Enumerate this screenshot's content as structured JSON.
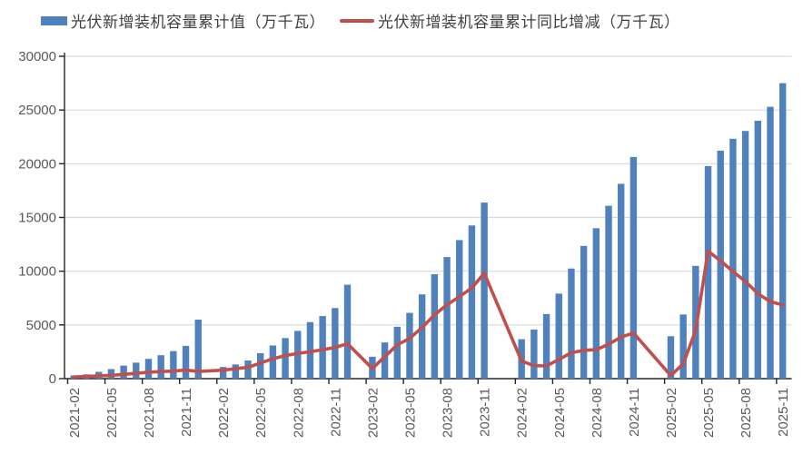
{
  "chart_data": {
    "type": "combo_bar_line",
    "title": "",
    "legend_position": "top",
    "grid": true,
    "categories": [
      "2021-02",
      "2021-03",
      "2021-04",
      "2021-05",
      "2021-06",
      "2021-07",
      "2021-08",
      "2021-09",
      "2021-10",
      "2021-11",
      "2021-12",
      "2022-01",
      "2022-02",
      "2022-03",
      "2022-04",
      "2022-05",
      "2022-06",
      "2022-07",
      "2022-08",
      "2022-09",
      "2022-10",
      "2022-11",
      "2022-12",
      "2023-01",
      "2023-02",
      "2023-03",
      "2023-04",
      "2023-05",
      "2023-06",
      "2023-07",
      "2023-08",
      "2023-09",
      "2023-10",
      "2023-11",
      "2023-12",
      "2024-01",
      "2024-02",
      "2024-03",
      "2024-04",
      "2024-05",
      "2024-06",
      "2024-07",
      "2024-08",
      "2024-09",
      "2024-10",
      "2024-11",
      "2024-12",
      "2025-01",
      "2025-02",
      "2025-03",
      "2025-04",
      "2025-05",
      "2025-06",
      "2025-07",
      "2025-08",
      "2025-09",
      "2025-10",
      "2025-11"
    ],
    "series": [
      {
        "name": "光伏新增装机容量累计值（万千瓦）",
        "type": "bar",
        "color": "#4F81BD",
        "values": [
          300,
          400,
          630,
          890,
          1210,
          1490,
          1840,
          2180,
          2560,
          3050,
          5490,
          null,
          1086,
          1321,
          1688,
          2371,
          3088,
          3773,
          4447,
          5260,
          5824,
          6571,
          8741,
          null,
          2037,
          3366,
          4831,
          6121,
          7842,
          9716,
          11316,
          12894,
          14256,
          16388,
          null,
          null,
          3672,
          4574,
          6011,
          7915,
          10248,
          12353,
          14000,
          16088,
          18130,
          20630,
          null,
          null,
          3947,
          5971,
          10493,
          19785,
          21221,
          22325,
          23050,
          24000,
          25300,
          27500
        ]
      },
      {
        "name": "光伏新增装机容量累计同比增减（万千瓦）",
        "type": "line",
        "color": "#C0504D",
        "values": [
          150,
          200,
          260,
          300,
          400,
          500,
          600,
          660,
          700,
          800,
          670,
          null,
          790,
          920,
          1060,
          1450,
          1850,
          2150,
          2350,
          2500,
          2700,
          2900,
          3250,
          null,
          950,
          2045,
          3143,
          3750,
          4754,
          5943,
          6869,
          7634,
          8432,
          9817,
          null,
          null,
          1635,
          1208,
          1180,
          1794,
          2406,
          2637,
          2700,
          3194,
          3874,
          4242,
          null,
          null,
          275,
          1397,
          4482,
          11870,
          10973,
          9972,
          9050,
          7912,
          7170,
          6870
        ]
      }
    ],
    "y_axis": {
      "min": 0,
      "max": 30000,
      "tick_step": 5000,
      "tick_labels": [
        "0",
        "5000",
        "10000",
        "15000",
        "20000",
        "25000",
        "30000"
      ]
    },
    "x_axis": {
      "tick_label_every": 3,
      "label_rotation": -90,
      "tick_labels": [
        "2021-02",
        "2021-05",
        "2021-08",
        "2021-11",
        "2022-02",
        "2022-05",
        "2022-08",
        "2022-11",
        "2023-02",
        "2023-05",
        "2023-08",
        "2023-11",
        "2024-02",
        "2024-05",
        "2024-08",
        "2024-11",
        "2025-02",
        "2025-05",
        "2025-08",
        "2025-11"
      ]
    },
    "colors": {
      "grid": "#D9D9D9",
      "axis": "#262626",
      "tick_text": "#595959",
      "background": "#FFFFFF"
    }
  }
}
